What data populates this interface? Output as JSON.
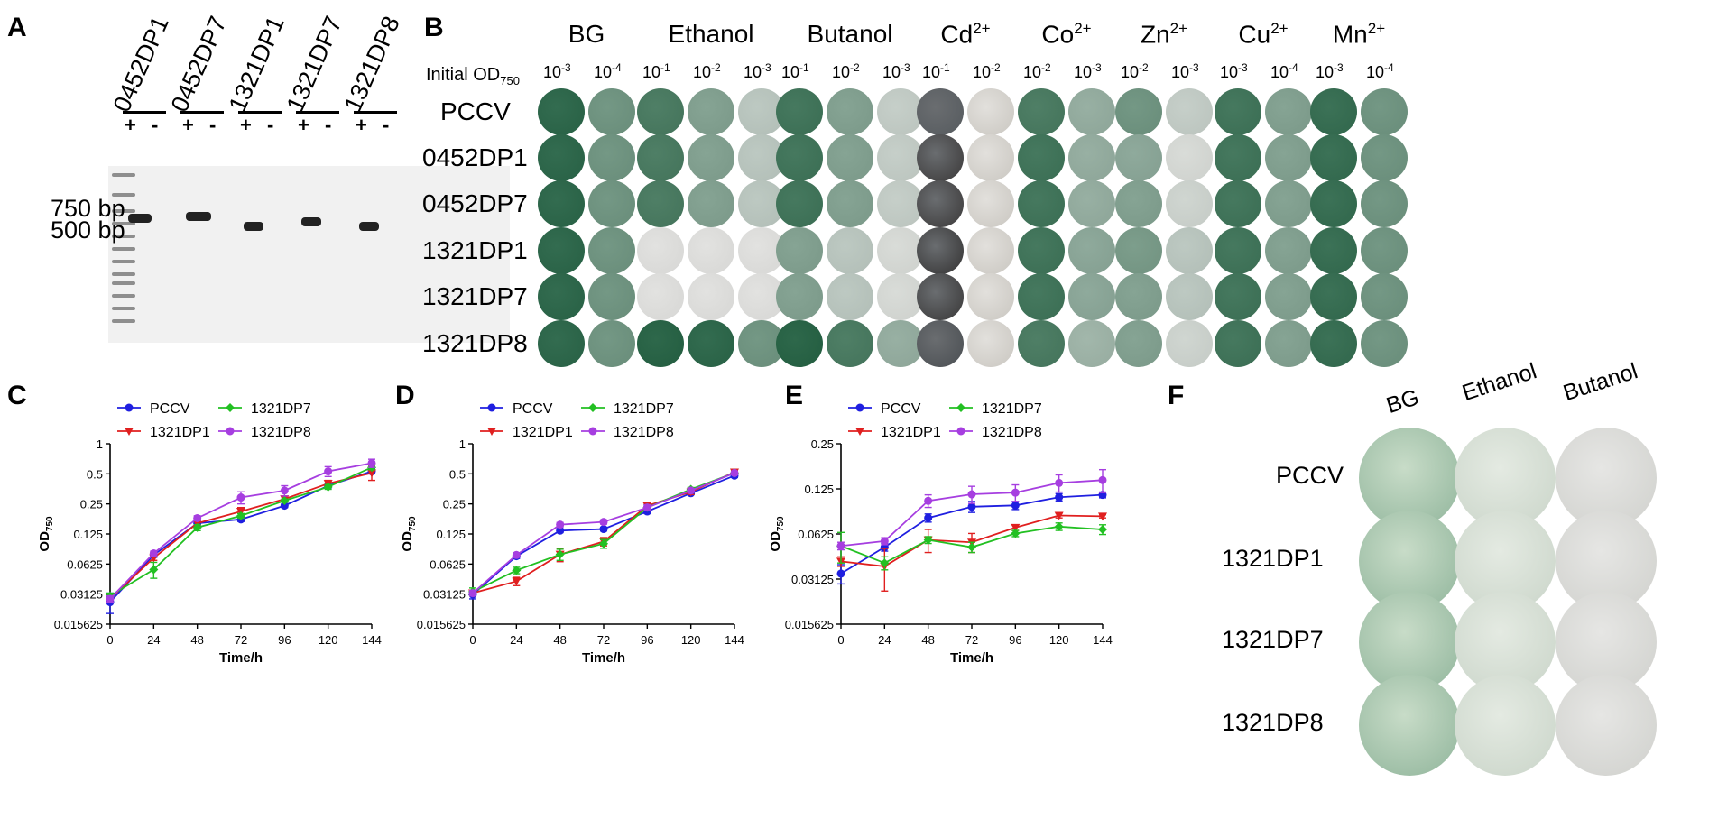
{
  "panels": {
    "A": {
      "letter": "A",
      "lanes": [
        "0452DP1",
        "0452DP7",
        "1321DP1",
        "1321DP7",
        "1321DP8"
      ],
      "plus": "+",
      "minus": "-",
      "marker_high": "750 bp",
      "marker_low": "500 bp"
    },
    "B": {
      "letter": "B",
      "initial_od_label": "Initial OD",
      "initial_od_sub": "750",
      "columns": [
        {
          "name": "BG",
          "sup": "",
          "dilutions": [
            [
              "10",
              "-3"
            ],
            [
              "10",
              "-4"
            ]
          ]
        },
        {
          "name": "Ethanol",
          "sup": "",
          "dilutions": [
            [
              "10",
              "-1"
            ],
            [
              "10",
              "-2"
            ],
            [
              "10",
              "-3"
            ]
          ]
        },
        {
          "name": "Butanol",
          "sup": "",
          "dilutions": [
            [
              "10",
              "-1"
            ],
            [
              "10",
              "-2"
            ],
            [
              "10",
              "-3"
            ]
          ]
        },
        {
          "name": "Cd",
          "sup": "2+",
          "dilutions": [
            [
              "10",
              "-1"
            ],
            [
              "10",
              "-2"
            ]
          ]
        },
        {
          "name": "Co",
          "sup": "2+",
          "dilutions": [
            [
              "10",
              "-2"
            ],
            [
              "10",
              "-3"
            ]
          ]
        },
        {
          "name": "Zn",
          "sup": "2+",
          "dilutions": [
            [
              "10",
              "-2"
            ],
            [
              "10",
              "-3"
            ]
          ]
        },
        {
          "name": "Cu",
          "sup": "2+",
          "dilutions": [
            [
              "10",
              "-3"
            ],
            [
              "10",
              "-4"
            ]
          ]
        },
        {
          "name": "Mn",
          "sup": "2+",
          "dilutions": [
            [
              "10",
              "-3"
            ],
            [
              "10",
              "-4"
            ]
          ]
        }
      ],
      "strains": [
        "PCCV",
        "0452DP1",
        "0452DP7",
        "1321DP1",
        "1321DP7",
        "1321DP8"
      ]
    },
    "C": {
      "letter": "C"
    },
    "D": {
      "letter": "D"
    },
    "E": {
      "letter": "E"
    },
    "F": {
      "letter": "F",
      "columns": [
        "BG",
        "Ethanol",
        "Butanol"
      ],
      "strains": [
        "PCCV",
        "1321DP1",
        "1321DP7",
        "1321DP8"
      ]
    }
  },
  "colors": {
    "PCCV": "#1f1fe0",
    "1321DP1": "#e01f1f",
    "1321DP7": "#22c022",
    "1321DP8": "#a63ee0"
  },
  "chart_data": [
    {
      "panel": "C",
      "type": "line",
      "xlabel": "Time/h",
      "ylabel_main": "OD",
      "ylabel_sub": "750",
      "yscale": "log2",
      "ylim": [
        0.015625,
        1
      ],
      "yticks": [
        "0.015625",
        "0.03125",
        "0.0625",
        "0.125",
        "0.25",
        "0.5",
        "1"
      ],
      "x": [
        0,
        24,
        48,
        72,
        96,
        120,
        144
      ],
      "legend_placement": "top-left",
      "series": [
        {
          "name": "PCCV",
          "marker": "circle",
          "values": [
            0.026,
            0.077,
            0.16,
            0.175,
            0.24,
            0.38,
            0.53
          ],
          "err": [
            0.006,
            0.004,
            0.008,
            0.008,
            0.01,
            0.02,
            0.03
          ]
        },
        {
          "name": "1321DP1",
          "marker": "triangle-down",
          "values": [
            0.028,
            0.072,
            0.16,
            0.21,
            0.28,
            0.4,
            0.51
          ],
          "err": [
            0.002,
            0.004,
            0.01,
            0.02,
            0.02,
            0.03,
            0.08
          ]
        },
        {
          "name": "1321DP7",
          "marker": "diamond",
          "values": [
            0.03,
            0.055,
            0.145,
            0.19,
            0.27,
            0.37,
            0.58
          ],
          "err": [
            0.002,
            0.01,
            0.01,
            0.01,
            0.01,
            0.02,
            0.03
          ]
        },
        {
          "name": "1321DP8",
          "marker": "circle",
          "values": [
            0.028,
            0.08,
            0.18,
            0.29,
            0.34,
            0.53,
            0.64
          ],
          "err": [
            0.002,
            0.004,
            0.01,
            0.04,
            0.04,
            0.06,
            0.06
          ]
        }
      ]
    },
    {
      "panel": "D",
      "type": "line",
      "xlabel": "Time/h",
      "ylabel_main": "OD",
      "ylabel_sub": "750",
      "yscale": "log2",
      "ylim": [
        0.015625,
        1
      ],
      "yticks": [
        "0.015625",
        "0.03125",
        "0.0625",
        "0.125",
        "0.25",
        "0.5",
        "1"
      ],
      "x": [
        0,
        24,
        48,
        72,
        96,
        120,
        144
      ],
      "legend_placement": "top-left",
      "series": [
        {
          "name": "PCCV",
          "marker": "circle",
          "values": [
            0.031,
            0.075,
            0.135,
            0.14,
            0.21,
            0.32,
            0.48
          ],
          "err": [
            0.003,
            0.004,
            0.006,
            0.006,
            0.01,
            0.01,
            0.02
          ]
        },
        {
          "name": "1321DP1",
          "marker": "triangle-down",
          "values": [
            0.032,
            0.042,
            0.078,
            0.105,
            0.24,
            0.33,
            0.52
          ],
          "err": [
            0.002,
            0.004,
            0.012,
            0.01,
            0.015,
            0.02,
            0.02
          ]
        },
        {
          "name": "1321DP7",
          "marker": "diamond",
          "values": [
            0.033,
            0.054,
            0.078,
            0.1,
            0.23,
            0.35,
            0.51
          ],
          "err": [
            0.003,
            0.004,
            0.01,
            0.01,
            0.015,
            0.015,
            0.02
          ]
        },
        {
          "name": "1321DP8",
          "marker": "circle",
          "values": [
            0.032,
            0.077,
            0.155,
            0.165,
            0.23,
            0.34,
            0.51
          ],
          "err": [
            0.002,
            0.004,
            0.008,
            0.008,
            0.015,
            0.015,
            0.02
          ]
        }
      ]
    },
    {
      "panel": "E",
      "type": "line",
      "xlabel": "Time/h",
      "ylabel_main": "OD",
      "ylabel_sub": "750",
      "yscale": "log2",
      "ylim": [
        0.015625,
        0.25
      ],
      "yticks": [
        "0.015625",
        "0.03125",
        "0.0625",
        "0.125",
        "0.25"
      ],
      "x": [
        0,
        24,
        48,
        72,
        96,
        120,
        144
      ],
      "legend_placement": "top-left",
      "series": [
        {
          "name": "PCCV",
          "marker": "circle",
          "values": [
            0.034,
            0.051,
            0.08,
            0.095,
            0.097,
            0.11,
            0.114
          ],
          "err": [
            0.005,
            0.003,
            0.005,
            0.008,
            0.006,
            0.006,
            0.005
          ]
        },
        {
          "name": "1321DP1",
          "marker": "triangle-down",
          "values": [
            0.041,
            0.038,
            0.057,
            0.055,
            0.069,
            0.083,
            0.082
          ],
          "err": [
            0.003,
            0.012,
            0.01,
            0.008,
            0.003,
            0.003,
            0.002
          ]
        },
        {
          "name": "1321DP7",
          "marker": "diamond",
          "values": [
            0.052,
            0.04,
            0.057,
            0.051,
            0.063,
            0.07,
            0.067
          ],
          "err": [
            0.012,
            0.004,
            0.003,
            0.004,
            0.003,
            0.004,
            0.005
          ]
        },
        {
          "name": "1321DP8",
          "marker": "circle",
          "values": [
            0.052,
            0.056,
            0.104,
            0.115,
            0.118,
            0.137,
            0.143
          ],
          "err": [
            0.003,
            0.003,
            0.01,
            0.015,
            0.015,
            0.018,
            0.025
          ]
        }
      ]
    }
  ]
}
